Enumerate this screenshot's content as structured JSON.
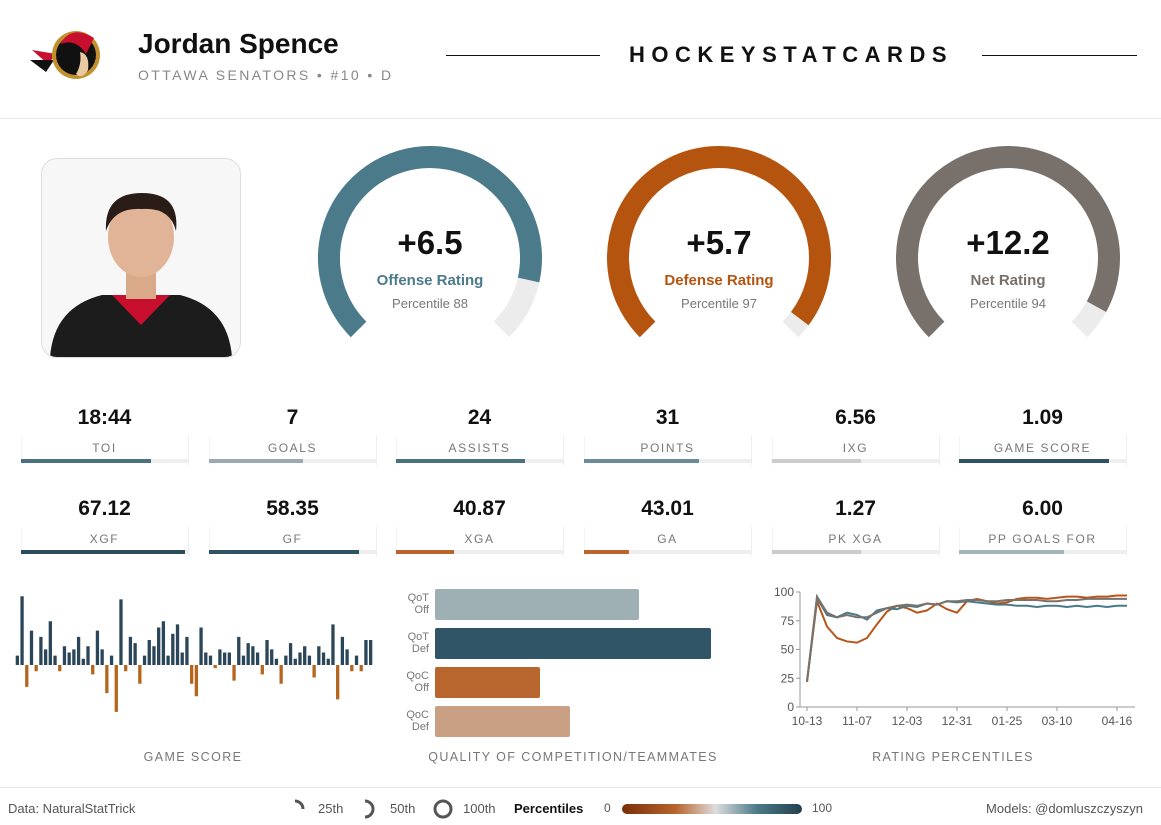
{
  "header": {
    "name": "Jordan Spence",
    "subtitle": "OTTAWA SENATORS • #10 • D",
    "brand": "HOCKEYSTATCARDS"
  },
  "ratings": [
    {
      "value": "+6.5",
      "name": "Offense Rating",
      "percentile_text": "Percentile",
      "percentile": 88,
      "color": "#4b7a8a"
    },
    {
      "value": "+5.7",
      "name": "Defense Rating",
      "percentile_text": "Percentile",
      "percentile": 97,
      "color": "#b5540f"
    },
    {
      "value": "+12.2",
      "name": "Net Rating",
      "percentile_text": "Percentile",
      "percentile": 94,
      "color": "#78706a"
    }
  ],
  "stats": [
    {
      "value": "18:44",
      "label": "TOI",
      "percentile": 78,
      "color": "#4b7080"
    },
    {
      "value": "7",
      "label": "GOALS",
      "percentile": 56,
      "color": "#9aabb0"
    },
    {
      "value": "24",
      "label": "ASSISTS",
      "percentile": 77,
      "color": "#4b7080"
    },
    {
      "value": "31",
      "label": "POINTS",
      "percentile": 69,
      "color": "#6a8c99"
    },
    {
      "value": "6.56",
      "label": "IXG",
      "percentile": 53,
      "color": "#cccccc"
    },
    {
      "value": "1.09",
      "label": "GAME SCORE",
      "percentile": 90,
      "color": "#2f5364"
    },
    {
      "value": "67.12",
      "label": "XGF",
      "percentile": 98,
      "color": "#2c4d5c"
    },
    {
      "value": "58.35",
      "label": "GF",
      "percentile": 90,
      "color": "#2f5364"
    },
    {
      "value": "40.87",
      "label": "XGA",
      "percentile": 35,
      "color": "#b8652e"
    },
    {
      "value": "43.01",
      "label": "GA",
      "percentile": 27,
      "color": "#b8652e"
    },
    {
      "value": "1.27",
      "label": "PK XGA",
      "percentile": 53,
      "color": "#cccccc"
    },
    {
      "value": "6.00",
      "label": "PP GOALS FOR",
      "percentile": 63,
      "color": "#a3b6bc"
    }
  ],
  "chart_data": [
    {
      "type": "bar",
      "title": "GAME SCORE",
      "ylim": [
        -1.6,
        2.4
      ],
      "positive_color": "#2b4658",
      "negative_color": "#b5651d",
      "values": [
        0.3,
        2.2,
        -0.7,
        1.1,
        -0.2,
        0.9,
        0.5,
        1.4,
        0.3,
        -0.2,
        0.6,
        0.4,
        0.5,
        0.9,
        0.2,
        0.6,
        -0.3,
        1.1,
        0.5,
        -0.9,
        0.3,
        -1.5,
        2.1,
        -0.2,
        0.9,
        0.7,
        -0.6,
        0.3,
        0.8,
        0.6,
        1.2,
        1.4,
        0.3,
        1.0,
        1.3,
        0.4,
        0.9,
        -0.6,
        -1.0,
        1.2,
        0.4,
        0.3,
        -0.1,
        0.5,
        0.4,
        0.4,
        -0.5,
        0.9,
        0.3,
        0.7,
        0.6,
        0.4,
        -0.3,
        0.8,
        0.5,
        0.2,
        -0.6,
        0.3,
        0.7,
        0.2,
        0.4,
        0.6,
        0.3,
        -0.4,
        0.6,
        0.4,
        0.2,
        1.3,
        -1.1,
        0.9,
        0.5,
        -0.2,
        0.3,
        -0.2,
        0.8,
        0.8
      ]
    },
    {
      "type": "hbar",
      "title": "QUALITY OF COMPETITION/TEAMMATES",
      "xlim": [
        0,
        100
      ],
      "categories": [
        "QoT Off",
        "QoT Def",
        "QoC Off",
        "QoC Def"
      ],
      "values": [
        68,
        92,
        35,
        45
      ],
      "colors": [
        "#9fb0b4",
        "#2f5566",
        "#b8652e",
        "#c9a083"
      ]
    },
    {
      "type": "line",
      "title": "RATING PERCENTILES",
      "ylim": [
        0,
        100
      ],
      "yticks": [
        0,
        25,
        50,
        75,
        100
      ],
      "categories": [
        "10-13",
        null,
        null,
        null,
        null,
        "11-07",
        null,
        null,
        null,
        null,
        "12-03",
        null,
        null,
        null,
        null,
        "12-31",
        null,
        null,
        null,
        null,
        "01-25",
        null,
        null,
        null,
        null,
        "03-10",
        null,
        null,
        null,
        null,
        null,
        "04-16",
        null
      ],
      "series": [
        {
          "color": "#b8561a",
          "values": [
            22,
            92,
            70,
            60,
            57,
            56,
            60,
            72,
            83,
            88,
            86,
            82,
            84,
            90,
            85,
            82,
            92,
            94,
            92,
            90,
            91,
            94,
            95,
            95,
            94,
            95,
            96,
            96,
            95,
            96,
            96,
            97,
            97
          ]
        },
        {
          "color": "#4a7a8a",
          "values": [
            22,
            95,
            80,
            78,
            82,
            80,
            76,
            84,
            86,
            85,
            88,
            87,
            90,
            89,
            92,
            91,
            92,
            91,
            90,
            89,
            89,
            88,
            88,
            87,
            88,
            88,
            87,
            88,
            87,
            88,
            87,
            88,
            88
          ]
        },
        {
          "color": "#7a716a",
          "values": [
            22,
            96,
            82,
            78,
            80,
            78,
            78,
            82,
            86,
            88,
            89,
            88,
            90,
            89,
            92,
            92,
            93,
            93,
            92,
            92,
            93,
            93,
            93,
            93,
            92,
            92,
            93,
            93,
            94,
            94,
            94,
            94,
            94
          ]
        }
      ]
    }
  ],
  "footer": {
    "source": "Data: NaturalStatTrick",
    "legend": [
      "25th",
      "50th",
      "100th"
    ],
    "scale_title": "Percentiles",
    "scale_min": "0",
    "scale_max": "100",
    "credit": "Models: @domluszczyszyn"
  }
}
